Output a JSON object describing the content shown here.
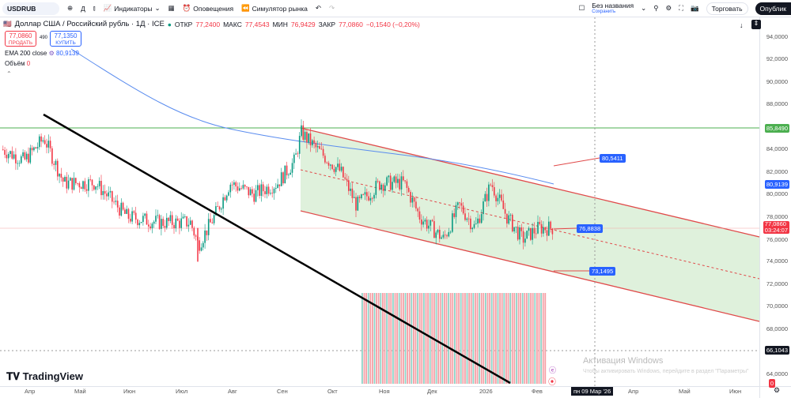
{
  "toolbar": {
    "symbol": "USDRUB",
    "interval": "Д",
    "indicators": "Индикаторы",
    "alerts": "Оповещения",
    "replay": "Симулятор рынка",
    "layout_name": "Без названия",
    "save": "Сохранить",
    "trade": "Торговать",
    "publish": "Опублик"
  },
  "legend": {
    "title": "Доллар США / Российский рубль · 1Д · ICE",
    "open_label": "ОТКР",
    "open": "77,2400",
    "high_label": "МАКС",
    "high": "77,4543",
    "low_label": "МИН",
    "low": "76,9429",
    "close_label": "ЗАКР",
    "close": "77,0860",
    "change": "−0,1540 (−0,20%)",
    "sell_price": "77,0860",
    "sell_label": "ПРОДАТЬ",
    "spread": "490",
    "buy_price": "77,1350",
    "buy_label": "КУПИТЬ",
    "ema_label": "EMA 200 close",
    "ema_value": "80,9139",
    "volume_label": "Объём",
    "volume_value": "0"
  },
  "price_axis": [
    "94,0000",
    "92,0000",
    "90,0000",
    "88,0000",
    "84,0000",
    "82,0000",
    "80,0000",
    "78,0000",
    "76,0000",
    "74,0000",
    "72,0000",
    "70,0000",
    "68,0000",
    "64,0000"
  ],
  "price_tags": {
    "resistance": "85,8490",
    "ema": "80,9139",
    "last": "77,0860",
    "countdown": "03:24:07",
    "support": "66,1043",
    "volume": "0"
  },
  "channel_labels": {
    "upper": "80,5411",
    "mid": "76,8838",
    "lower": "73,1495"
  },
  "time_axis": [
    "Апр",
    "Май",
    "Июн",
    "Июл",
    "Авг",
    "Сен",
    "Окт",
    "Ноя",
    "Дек",
    "2026",
    "Фев",
    "Апр",
    "Май",
    "Июн"
  ],
  "crosshair_date": "пн 09 Мар '26",
  "watermark": {
    "logo": "TradingView",
    "activation": "Активация Windows",
    "activation_hint": "Чтобы активировать Windows, перейдите в раздел \"Параметры\""
  },
  "colors": {
    "up": "#089981",
    "down": "#f23645",
    "ema": "#5b8def",
    "channel": "#e04a4a",
    "fill": "#dff1dc",
    "resistance": "#4caf50"
  }
}
